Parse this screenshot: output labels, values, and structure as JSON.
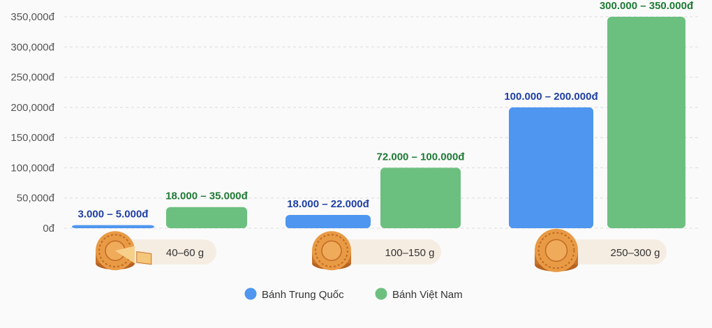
{
  "chart_data": {
    "type": "bar",
    "categories": [
      "40–60 g",
      "100–150 g",
      "250–300 g"
    ],
    "series": [
      {
        "name": "Bánh Trung Quốc",
        "color": "#4e96ef",
        "label_color": "#1f3fa3",
        "values": [
          [
            3000,
            5000
          ],
          [
            18000,
            22000
          ],
          [
            100000,
            200000
          ]
        ],
        "labels": [
          "3.000 – 5.000đ",
          "18.000 – 22.000đ",
          "100.000 – 200.000đ"
        ]
      },
      {
        "name": "Bánh Việt Nam",
        "color": "#6cc07f",
        "label_color": "#1e7a35",
        "values": [
          [
            18000,
            35000
          ],
          [
            72000,
            100000
          ],
          [
            300000,
            350000
          ]
        ],
        "labels": [
          "18.000 – 35.000đ",
          "72.000 – 100.000đ",
          "300.000 – 350.000đ"
        ]
      }
    ],
    "ylim": [
      0,
      350000
    ],
    "yticks": [
      0,
      50000,
      100000,
      150000,
      200000,
      250000,
      300000,
      350000
    ],
    "ytick_labels": [
      "0đ",
      "50,000đ",
      "100,000đ",
      "150,000đ",
      "200,000đ",
      "250,000đ",
      "300,000đ",
      "350,000đ"
    ],
    "grid": true,
    "legend_position": "bottom-center",
    "category_icon": "mooncake-icon"
  }
}
